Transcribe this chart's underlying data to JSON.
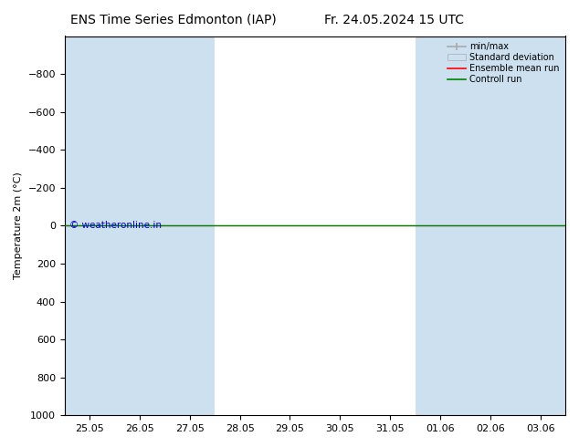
{
  "title_left": "ENS Time Series Edmonton (IAP)",
  "title_right": "Fr. 24.05.2024 15 UTC",
  "ylabel": "Temperature 2m (°C)",
  "ylim": [
    -1000,
    1000
  ],
  "yticks": [
    -800,
    -600,
    -400,
    -200,
    0,
    200,
    400,
    600,
    800,
    1000
  ],
  "x_tick_labels": [
    "25.05",
    "26.05",
    "27.05",
    "28.05",
    "29.05",
    "30.05",
    "31.05",
    "01.06",
    "02.06",
    "03.06"
  ],
  "x_tick_positions": [
    0,
    1,
    2,
    3,
    4,
    5,
    6,
    7,
    8,
    9
  ],
  "shaded_bands": [
    0,
    1,
    2,
    7,
    8,
    9
  ],
  "horizontal_line_y": 0,
  "line_color_control": "#008000",
  "line_color_ensemble": "#ff0000",
  "bg_color": "#ffffff",
  "shade_color": "#cce0f0",
  "copyright_text": "© weatheronline.in",
  "copyright_color": "#0000cc",
  "legend_entries": [
    "min/max",
    "Standard deviation",
    "Ensemble mean run",
    "Controll run"
  ],
  "legend_colors": [
    "#aaaaaa",
    "#c8dff0",
    "#ff0000",
    "#008000"
  ],
  "title_fontsize": 10,
  "axis_fontsize": 8,
  "ylabel_fontsize": 8
}
